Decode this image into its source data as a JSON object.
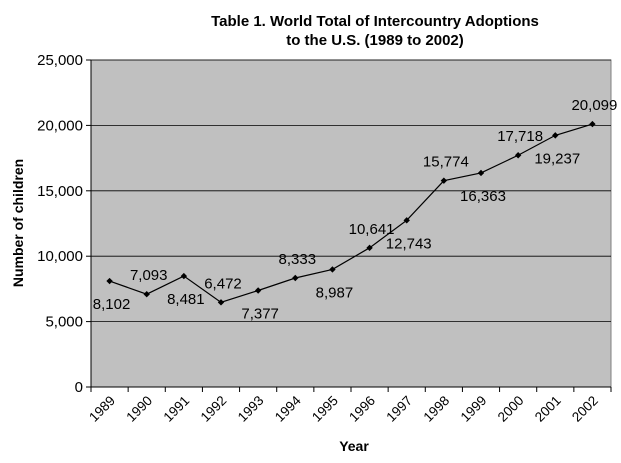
{
  "chart_data": {
    "type": "line",
    "title": "Table 1. World Total of Intercountry Adoptions",
    "subtitle": "to the U.S.  (1989 to 2002)",
    "xlabel": "Year",
    "ylabel": "Number of children",
    "ylim": [
      0,
      25000
    ],
    "yticks": [
      "0",
      "5,000",
      "10,000",
      "15,000",
      "20,000",
      "25,000"
    ],
    "grid": true,
    "legend": "none",
    "categories": [
      "1989",
      "1990",
      "1991",
      "1992",
      "1993",
      "1994",
      "1995",
      "1996",
      "1997",
      "1998",
      "1999",
      "2000",
      "2001",
      "2002"
    ],
    "series": [
      {
        "values": [
          8102,
          7093,
          8481,
          6472,
          7377,
          8333,
          8987,
          10641,
          12743,
          15774,
          16363,
          17718,
          19237,
          20099
        ]
      }
    ],
    "data_labels": [
      "8,102",
      "7,093",
      "8,481",
      "6,472",
      "7,377",
      "8,333",
      "8,987",
      "10,641",
      "12,743",
      "15,774",
      "16,363",
      "17,718",
      "19,237",
      "20,099"
    ],
    "colors": {
      "plot_background": "#c0c0c0",
      "gridline": "#000000",
      "line": "#000000"
    }
  }
}
